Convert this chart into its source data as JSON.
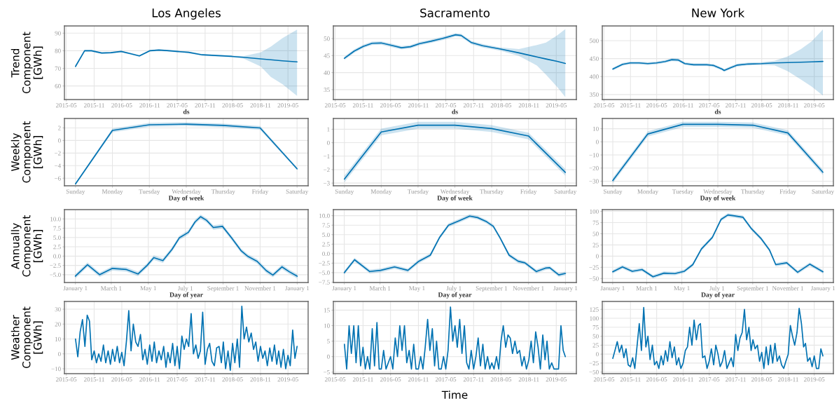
{
  "chart_data": [
    {
      "type": "line",
      "title": "Los Angeles",
      "ylabel": "Trend\nComponent\n[GWh]",
      "xlabel": "ds",
      "grid": true,
      "x": [
        "2015-07-01",
        "2015-08-30",
        "2015-10-14",
        "2015-12-21",
        "2016-02-19",
        "2016-04-27",
        "2016-06-26",
        "2016-08-25",
        "2016-11-01",
        "2016-12-31",
        "2017-02-22",
        "2017-05-01",
        "2017-07-15",
        "2017-10-13",
        "2018-04-27",
        "2018-07-12",
        "2018-11-02",
        "2019-01-08",
        "2019-03-25",
        "2019-06-30"
      ],
      "series": [
        {
          "color": "#0072b2",
          "values": [
            71.1,
            80.0,
            80.0,
            78.7,
            78.9,
            79.6,
            78.4,
            77.1,
            80.0,
            80.4,
            80.1,
            79.6,
            79.1,
            77.7,
            76.8,
            76.3,
            75.4,
            74.9,
            74.3,
            73.7
          ],
          "lower": [
            70.3,
            79.4,
            79.4,
            78.2,
            78.4,
            79.1,
            77.9,
            76.6,
            79.5,
            79.9,
            79.6,
            79.1,
            78.6,
            77.2,
            76.3,
            75.6,
            71.1,
            65.1,
            61.1,
            54.4
          ],
          "upper": [
            71.9,
            80.6,
            80.6,
            79.2,
            79.4,
            80.1,
            78.9,
            77.6,
            80.5,
            80.9,
            80.6,
            80.1,
            79.6,
            78.2,
            77.3,
            77.0,
            79.1,
            82.4,
            87.1,
            92.0
          ]
        }
      ],
      "xlim": [
        "2015-04-19",
        "2019-09-11"
      ],
      "xticks": [
        "2015-05",
        "2015-11",
        "2016-05",
        "2016-11",
        "2017-05",
        "2017-11",
        "2018-05",
        "2018-11",
        "2019-05"
      ],
      "ylim": [
        52.3,
        94.1
      ],
      "yticks": [
        60,
        70,
        80,
        90
      ]
    },
    {
      "type": "line",
      "title": "Sacramento",
      "xlabel": "ds",
      "grid": true,
      "x": [
        "2015-07-01",
        "2015-09-03",
        "2015-11-02",
        "2015-12-31",
        "2016-02-29",
        "2016-04-29",
        "2016-07-12",
        "2016-09-10",
        "2016-11-09",
        "2017-01-22",
        "2017-04-07",
        "2017-07-05",
        "2017-08-11",
        "2017-10-18",
        "2017-12-31",
        "2018-04-29",
        "2018-08-27",
        "2018-12-24",
        "2019-02-22",
        "2019-05-07",
        "2019-06-30"
      ],
      "series": [
        {
          "color": "#0072b2",
          "values": [
            44.2,
            46.3,
            47.7,
            48.6,
            48.7,
            48.1,
            47.3,
            47.6,
            48.5,
            49.2,
            50.0,
            51.1,
            50.9,
            48.8,
            47.9,
            46.9,
            45.8,
            44.6,
            44.0,
            43.3,
            42.7
          ],
          "lower": [
            43.7,
            45.8,
            47.2,
            48.1,
            48.2,
            47.6,
            46.8,
            47.1,
            48.0,
            48.7,
            49.5,
            50.6,
            50.4,
            48.3,
            47.4,
            46.4,
            44.9,
            42.1,
            39.4,
            35.8,
            32.8
          ],
          "upper": [
            44.7,
            46.8,
            48.2,
            49.1,
            49.2,
            48.6,
            47.8,
            48.1,
            49.0,
            49.7,
            50.5,
            51.6,
            51.4,
            49.3,
            48.4,
            47.4,
            46.9,
            48.1,
            48.8,
            50.9,
            52.8
          ]
        }
      ],
      "xlim": [
        "2015-04-19",
        "2019-09-11"
      ],
      "xticks": [
        "2015-05",
        "2015-11",
        "2016-05",
        "2016-11",
        "2017-05",
        "2017-11",
        "2018-05",
        "2018-11",
        "2019-05"
      ],
      "ylim": [
        32.1,
        53.7
      ],
      "yticks": [
        35,
        40,
        45,
        50
      ]
    },
    {
      "type": "line",
      "title": "New York",
      "xlabel": "ds",
      "grid": true,
      "x": [
        "2015-07-01",
        "2015-09-07",
        "2015-10-30",
        "2015-12-30",
        "2016-02-29",
        "2016-04-30",
        "2016-06-29",
        "2016-08-14",
        "2016-09-29",
        "2016-11-13",
        "2017-01-13",
        "2017-04-14",
        "2017-05-30",
        "2017-07-29",
        "2017-08-13",
        "2017-09-28",
        "2017-11-13",
        "2018-01-27",
        "2018-04-29",
        "2018-07-29",
        "2018-10-28",
        "2019-01-27",
        "2019-04-13",
        "2019-06-30"
      ],
      "series": [
        {
          "color": "#0072b2",
          "values": [
            421,
            434,
            438,
            438,
            436,
            438,
            442,
            447,
            446,
            436,
            433,
            433,
            431,
            421,
            417,
            425,
            432,
            435,
            436,
            438,
            439,
            440,
            441,
            442
          ],
          "lower": [
            417,
            430,
            434,
            434,
            432,
            434,
            438,
            443,
            442,
            432,
            429,
            429,
            427,
            417,
            413,
            421,
            428,
            431,
            432,
            431,
            415,
            392,
            372,
            347
          ],
          "upper": [
            425,
            438,
            442,
            442,
            440,
            442,
            446,
            451,
            450,
            440,
            437,
            437,
            435,
            425,
            421,
            429,
            436,
            439,
            440,
            444,
            456,
            476,
            498,
            531
          ]
        }
      ],
      "xlim": [
        "2015-04-19",
        "2019-09-11"
      ],
      "xticks": [
        "2015-05",
        "2015-11",
        "2016-05",
        "2016-11",
        "2017-05",
        "2017-11",
        "2018-05",
        "2018-11",
        "2019-05"
      ],
      "ylim": [
        336,
        541
      ],
      "yticks": [
        350,
        400,
        450,
        500
      ]
    },
    {
      "type": "line",
      "ylabel": "Weekly\nComponent\n[GWh]",
      "xlabel": "Day of week",
      "grid": true,
      "categories": [
        "Sunday",
        "Monday",
        "Tuesday",
        "Wednesday",
        "Thursday",
        "Friday",
        "Saturday"
      ],
      "series": [
        {
          "color": "#0072b2",
          "values": [
            -6.9,
            1.6,
            2.5,
            2.6,
            2.4,
            2.0,
            -4.5
          ],
          "lower": [
            -7.1,
            1.3,
            2.2,
            2.3,
            2.1,
            1.7,
            -4.7
          ],
          "upper": [
            -6.7,
            1.9,
            2.8,
            2.9,
            2.7,
            2.3,
            -4.3
          ]
        }
      ],
      "ylim": [
        -7.2,
        3.5
      ],
      "yticks": [
        -6,
        -4,
        -2,
        0,
        2
      ]
    },
    {
      "type": "line",
      "xlabel": "Day of week",
      "grid": true,
      "categories": [
        "Sunday",
        "Monday",
        "Tuesday",
        "Wednesday",
        "Thursday",
        "Friday",
        "Saturday"
      ],
      "series": [
        {
          "color": "#0072b2",
          "values": [
            -2.7,
            0.8,
            1.3,
            1.3,
            1.05,
            0.5,
            -2.2
          ],
          "lower": [
            -2.95,
            0.55,
            1.05,
            1.05,
            0.8,
            0.25,
            -2.45
          ],
          "upper": [
            -2.45,
            1.05,
            1.55,
            1.55,
            1.3,
            0.75,
            -1.95
          ]
        }
      ],
      "ylim": [
        -3.2,
        1.8
      ],
      "yticks": [
        -3,
        -2,
        -1,
        0,
        1
      ]
    },
    {
      "type": "line",
      "xlabel": "Day of week",
      "grid": true,
      "categories": [
        "Sunday",
        "Monday",
        "Tuesday",
        "Wednesday",
        "Thursday",
        "Friday",
        "Saturday"
      ],
      "series": [
        {
          "color": "#0072b2",
          "values": [
            -29.5,
            6,
            13.3,
            13.3,
            12.7,
            6.8,
            -23.2
          ],
          "lower": [
            -31.5,
            4,
            11.3,
            11.3,
            10.7,
            4.8,
            -25.2
          ],
          "upper": [
            -27.5,
            8,
            15.3,
            15.3,
            14.7,
            8.8,
            -21.2
          ]
        }
      ],
      "ylim": [
        -33.5,
        17.8
      ],
      "yticks": [
        -30,
        -20,
        -10,
        0,
        10
      ]
    },
    {
      "type": "line",
      "ylabel": "Annually\nComponent\n[GWh]",
      "xlabel": "Day of year",
      "grid": true,
      "x": [
        "2017-01-01",
        "2017-01-21",
        "2017-02-10",
        "2017-03-03",
        "2017-03-26",
        "2017-04-14",
        "2017-04-29",
        "2017-05-10",
        "2017-05-25",
        "2017-06-09",
        "2017-06-21",
        "2017-07-06",
        "2017-07-17",
        "2017-07-26",
        "2017-08-05",
        "2017-08-16",
        "2017-08-31",
        "2017-09-15",
        "2017-10-01",
        "2017-10-12",
        "2017-10-27",
        "2017-11-11",
        "2017-11-22",
        "2017-12-07",
        "2017-12-19",
        "2018-01-01"
      ],
      "series": [
        {
          "color": "#0072b2",
          "values": [
            -5.4,
            -2.3,
            -5.0,
            -3.3,
            -3.6,
            -4.8,
            -2.5,
            -0.4,
            -1.2,
            1.8,
            4.9,
            6.4,
            9.2,
            10.6,
            9.6,
            7.7,
            8.0,
            4.9,
            1.4,
            -0.1,
            -1.4,
            -3.9,
            -5.1,
            -2.9,
            -4.2,
            -5.4
          ],
          "lower": [
            -6.0,
            -2.9,
            -5.6,
            -3.9,
            -4.2,
            -5.4,
            -3.1,
            -1.0,
            -1.8,
            1.2,
            4.3,
            5.8,
            8.6,
            10.0,
            9.0,
            7.1,
            7.4,
            4.3,
            0.8,
            -0.7,
            -2.0,
            -4.5,
            -5.7,
            -3.5,
            -4.8,
            -6.0
          ],
          "upper": [
            -4.8,
            -1.7,
            -4.4,
            -2.7,
            -3.0,
            -4.2,
            -1.9,
            0.2,
            -0.6,
            2.4,
            5.5,
            7.0,
            9.8,
            11.2,
            10.2,
            8.3,
            8.6,
            5.5,
            2.0,
            0.5,
            -0.8,
            -3.3,
            -4.5,
            -2.3,
            -3.6,
            -4.8
          ]
        }
      ],
      "xlim": [
        "2016-12-14",
        "2018-01-19"
      ],
      "xticks": [
        {
          "value": "2017-01-01",
          "label": "January 1"
        },
        {
          "value": "2017-03-01",
          "label": "March 1"
        },
        {
          "value": "2017-05-01",
          "label": "May 1"
        },
        {
          "value": "2017-07-01",
          "label": "July 1"
        },
        {
          "value": "2017-09-01",
          "label": "September 1"
        },
        {
          "value": "2017-11-01",
          "label": "November 1"
        },
        {
          "value": "2018-01-01",
          "label": "January 1"
        }
      ],
      "ylim": [
        -7.1,
        12.5
      ],
      "yticks": [
        {
          "value": 10,
          "label": "10.0"
        },
        {
          "value": 7.5,
          "label": "7.5"
        },
        {
          "value": 5,
          "label": "5.0"
        },
        {
          "value": 2.5,
          "label": "2.5"
        },
        {
          "value": 0,
          "label": "0.0"
        },
        {
          "value": -2.5,
          "label": "−2.5"
        },
        {
          "value": -5,
          "label": "−5.0"
        }
      ]
    },
    {
      "type": "line",
      "xlabel": "Day of year",
      "grid": true,
      "x": [
        "2017-01-01",
        "2017-01-18",
        "2017-02-12",
        "2017-03-02",
        "2017-03-25",
        "2017-04-16",
        "2017-05-04",
        "2017-05-23",
        "2017-06-07",
        "2017-06-22",
        "2017-07-10",
        "2017-07-27",
        "2017-08-09",
        "2017-08-24",
        "2017-09-04",
        "2017-09-15",
        "2017-09-30",
        "2017-10-15",
        "2017-10-26",
        "2017-11-14",
        "2017-11-29",
        "2017-12-06",
        "2017-12-21",
        "2018-01-01"
      ],
      "series": [
        {
          "color": "#0072b2",
          "values": [
            -5.0,
            -1.6,
            -4.7,
            -4.4,
            -3.5,
            -4.4,
            -2.0,
            -0.4,
            4.2,
            7.5,
            8.7,
            9.9,
            9.5,
            8.4,
            7.2,
            4.2,
            -0.4,
            -2.0,
            -2.4,
            -4.7,
            -3.8,
            -3.7,
            -5.6,
            -5.2
          ],
          "lower": [
            -5.5,
            -2.1,
            -5.2,
            -4.9,
            -4.0,
            -4.9,
            -2.5,
            -0.9,
            3.7,
            7.0,
            8.2,
            9.4,
            9.0,
            7.9,
            6.7,
            3.7,
            -0.9,
            -2.5,
            -2.9,
            -5.2,
            -4.3,
            -4.2,
            -6.1,
            -5.7
          ],
          "upper": [
            -4.5,
            -1.1,
            -4.2,
            -3.9,
            -3.0,
            -3.9,
            -1.5,
            0.1,
            4.7,
            8.0,
            9.2,
            10.4,
            10.0,
            8.9,
            7.7,
            4.7,
            0.1,
            -1.5,
            -1.9,
            -4.2,
            -3.3,
            -3.2,
            -5.1,
            -4.7
          ]
        }
      ],
      "xlim": [
        "2016-12-14",
        "2018-01-19"
      ],
      "xticks": [
        {
          "value": "2017-01-01",
          "label": "January 1"
        },
        {
          "value": "2017-03-01",
          "label": "March 1"
        },
        {
          "value": "2017-05-01",
          "label": "May 1"
        },
        {
          "value": "2017-07-01",
          "label": "July 1"
        },
        {
          "value": "2017-09-01",
          "label": "September 1"
        },
        {
          "value": "2017-11-01",
          "label": "November 1"
        },
        {
          "value": "2018-01-01",
          "label": "January 1"
        }
      ],
      "ylim": [
        -7.6,
        11.6
      ],
      "yticks": [
        {
          "value": 10,
          "label": "10.0"
        },
        {
          "value": 7.5,
          "label": "7.5"
        },
        {
          "value": 5,
          "label": "5.0"
        },
        {
          "value": 2.5,
          "label": "2.5"
        },
        {
          "value": 0,
          "label": "0.0"
        },
        {
          "value": -2.5,
          "label": "−2.5"
        },
        {
          "value": -5,
          "label": "−5.0"
        },
        {
          "value": -7.5,
          "label": "−7.5"
        }
      ]
    },
    {
      "type": "line",
      "xlabel": "Day of year",
      "grid": true,
      "x": [
        "2017-01-01",
        "2017-01-18",
        "2017-02-04",
        "2017-02-21",
        "2017-03-12",
        "2017-03-31",
        "2017-04-19",
        "2017-05-05",
        "2017-05-20",
        "2017-06-04",
        "2017-06-23",
        "2017-07-08",
        "2017-07-20",
        "2017-07-31",
        "2017-08-15",
        "2017-08-30",
        "2017-09-15",
        "2017-09-30",
        "2017-10-11",
        "2017-10-30",
        "2017-11-18",
        "2017-12-09",
        "2018-01-01"
      ],
      "series": [
        {
          "color": "#0072b2",
          "values": [
            -35,
            -24,
            -34,
            -30,
            -46,
            -38,
            -39,
            -34,
            -19,
            16,
            42,
            82,
            92,
            90,
            87,
            61,
            40,
            14,
            -19,
            -15,
            -36,
            -18,
            -35
          ],
          "lower": [
            -39,
            -28,
            -38,
            -34,
            -50,
            -42,
            -43,
            -38,
            -23,
            12,
            38,
            78,
            88,
            86,
            83,
            57,
            36,
            10,
            -23,
            -19,
            -40,
            -22,
            -39
          ],
          "upper": [
            -31,
            -20,
            -30,
            -26,
            -42,
            -34,
            -35,
            -30,
            -15,
            20,
            46,
            86,
            96,
            94,
            91,
            65,
            44,
            18,
            -15,
            -11,
            -32,
            -14,
            -31
          ]
        }
      ],
      "xlim": [
        "2016-12-14",
        "2018-01-19"
      ],
      "xticks": [
        {
          "value": "2017-01-01",
          "label": "January 1"
        },
        {
          "value": "2017-03-01",
          "label": "March 1"
        },
        {
          "value": "2017-05-01",
          "label": "May 1"
        },
        {
          "value": "2017-07-01",
          "label": "July 1"
        },
        {
          "value": "2017-09-01",
          "label": "September 1"
        },
        {
          "value": "2017-11-01",
          "label": "November 1"
        },
        {
          "value": "2018-01-01",
          "label": "January 1"
        }
      ],
      "ylim": [
        -59,
        104
      ],
      "yticks": [
        -50,
        -25,
        0,
        25,
        50,
        75,
        100
      ]
    },
    {
      "type": "line",
      "ylabel": "Weather\nComponent\n[GWh]",
      "grid": true,
      "x": [
        "2015-07-01",
        "2015-07-16",
        "2015-08-01",
        "2015-08-16",
        "2015-09-01",
        "2015-09-16",
        "2015-10-01",
        "2015-10-16",
        "2015-11-01",
        "2015-11-16",
        "2015-12-01",
        "2015-12-16",
        "2016-01-01",
        "2016-01-16",
        "2016-02-01",
        "2016-02-16",
        "2016-03-01",
        "2016-03-16",
        "2016-04-01",
        "2016-04-16",
        "2016-05-01",
        "2016-05-16",
        "2016-06-01",
        "2016-06-16",
        "2016-07-01",
        "2016-07-16",
        "2016-08-01",
        "2016-08-16",
        "2016-09-01",
        "2016-09-16",
        "2016-10-01",
        "2016-10-16",
        "2016-11-01",
        "2016-11-16",
        "2016-12-01",
        "2016-12-16",
        "2017-01-01",
        "2017-01-16",
        "2017-02-01",
        "2017-02-16",
        "2017-03-01",
        "2017-03-16",
        "2017-04-01",
        "2017-04-16",
        "2017-05-01",
        "2017-05-16",
        "2017-06-01",
        "2017-06-16",
        "2017-07-01",
        "2017-07-16",
        "2017-08-01",
        "2017-08-16",
        "2017-09-01",
        "2017-09-16",
        "2017-10-01",
        "2017-10-16",
        "2017-11-01",
        "2017-11-16",
        "2017-12-01",
        "2017-12-16",
        "2018-01-01",
        "2018-01-16",
        "2018-02-01",
        "2018-02-16",
        "2018-03-01",
        "2018-03-16",
        "2018-04-01",
        "2018-04-16",
        "2018-05-01",
        "2018-05-16",
        "2018-06-01",
        "2018-06-16",
        "2018-07-01",
        "2018-07-16",
        "2018-08-01",
        "2018-08-16",
        "2018-09-01",
        "2018-09-16",
        "2018-10-01",
        "2018-10-16",
        "2018-11-01",
        "2018-11-16",
        "2018-12-01",
        "2018-12-16",
        "2019-01-01",
        "2019-01-16",
        "2019-02-01",
        "2019-02-16",
        "2019-03-01",
        "2019-03-16",
        "2019-04-01",
        "2019-04-16",
        "2019-05-01",
        "2019-05-16",
        "2019-06-01",
        "2019-06-16",
        "2019-06-30"
      ],
      "series": [
        {
          "color": "#0072b2",
          "values": [
            10,
            -2,
            15,
            23,
            5,
            26,
            22,
            -4,
            2,
            -6,
            0,
            -5,
            6,
            -6,
            2,
            -7,
            3,
            -5,
            5,
            -6,
            1,
            -8,
            9,
            29,
            2,
            20,
            8,
            5,
            13,
            -4,
            3,
            -7,
            6,
            -5,
            8,
            -6,
            2,
            -4,
            5,
            -9,
            1,
            -6,
            7,
            -8,
            5,
            -10,
            12,
            3,
            10,
            5,
            27,
            0,
            6,
            -3,
            2,
            28,
            -7,
            3,
            7,
            -5,
            -8,
            4,
            5,
            -6,
            8,
            -10,
            2,
            -11,
            7,
            -6,
            10,
            -9,
            32,
            10,
            18,
            8,
            14,
            3,
            8,
            -5,
            5,
            -3,
            2,
            -8,
            4,
            -5,
            6,
            -7,
            2,
            -9,
            3,
            -10,
            -1,
            -8,
            16,
            -3,
            5
          ]
        }
      ],
      "xlim": [
        "2015-04-19",
        "2019-09-11"
      ],
      "xticks": [
        "2015-05",
        "2015-11",
        "2016-05",
        "2016-11",
        "2017-05",
        "2017-11",
        "2018-05",
        "2018-11",
        "2019-05"
      ],
      "ylim": [
        -13.3,
        35.2
      ],
      "yticks": [
        -10,
        0,
        10,
        20,
        30
      ]
    },
    {
      "type": "line",
      "xlabel": "Time",
      "grid": true,
      "x": [
        "2015-07-01",
        "2015-07-16",
        "2015-08-01",
        "2015-08-16",
        "2015-09-01",
        "2015-09-16",
        "2015-10-01",
        "2015-10-16",
        "2015-11-01",
        "2015-11-16",
        "2015-12-01",
        "2015-12-16",
        "2016-01-01",
        "2016-01-16",
        "2016-02-01",
        "2016-02-16",
        "2016-03-01",
        "2016-03-16",
        "2016-04-01",
        "2016-04-16",
        "2016-05-01",
        "2016-05-16",
        "2016-06-01",
        "2016-06-16",
        "2016-07-01",
        "2016-07-16",
        "2016-08-01",
        "2016-08-16",
        "2016-09-01",
        "2016-09-16",
        "2016-10-01",
        "2016-10-16",
        "2016-11-01",
        "2016-11-16",
        "2016-12-01",
        "2016-12-16",
        "2017-01-01",
        "2017-01-16",
        "2017-02-01",
        "2017-02-16",
        "2017-03-01",
        "2017-03-16",
        "2017-04-01",
        "2017-04-16",
        "2017-05-01",
        "2017-05-16",
        "2017-06-01",
        "2017-06-16",
        "2017-07-01",
        "2017-07-16",
        "2017-08-01",
        "2017-08-16",
        "2017-09-01",
        "2017-09-16",
        "2017-10-01",
        "2017-10-16",
        "2017-11-01",
        "2017-11-16",
        "2017-12-01",
        "2017-12-16",
        "2018-01-01",
        "2018-01-16",
        "2018-02-01",
        "2018-02-16",
        "2018-03-01",
        "2018-03-16",
        "2018-04-01",
        "2018-04-16",
        "2018-05-01",
        "2018-05-16",
        "2018-06-01",
        "2018-06-16",
        "2018-07-01",
        "2018-07-16",
        "2018-08-01",
        "2018-08-16",
        "2018-09-01",
        "2018-09-16",
        "2018-10-01",
        "2018-10-16",
        "2018-11-01",
        "2018-11-16",
        "2018-12-01",
        "2018-12-16",
        "2019-01-01",
        "2019-01-16",
        "2019-02-01",
        "2019-02-16",
        "2019-03-01",
        "2019-03-16",
        "2019-04-01",
        "2019-04-16",
        "2019-05-01",
        "2019-05-16",
        "2019-06-01",
        "2019-06-16",
        "2019-06-30"
      ],
      "series": [
        {
          "color": "#0072b2",
          "values": [
            4,
            -4,
            10,
            1,
            10,
            -2,
            10,
            -3,
            3,
            -4,
            0,
            -4,
            9,
            -3,
            11,
            -4,
            -4,
            2,
            -4,
            -2,
            0,
            -4,
            6,
            0,
            10,
            2,
            10,
            -2,
            2,
            -4,
            4,
            -4,
            -4,
            0,
            -4,
            3,
            12,
            2,
            9,
            -3,
            5,
            -4,
            -4,
            0,
            -4,
            2,
            16,
            5,
            10,
            3,
            12,
            1,
            10,
            -2,
            -4,
            2,
            -4,
            0,
            6,
            -3,
            4,
            -4,
            0,
            -4,
            -2,
            -4,
            0,
            -4,
            5,
            10,
            3,
            7,
            6,
            1,
            5,
            1,
            2,
            -3,
            0,
            -4,
            -1,
            5,
            -2,
            8,
            3,
            -4,
            7,
            -1,
            5,
            -4,
            -2,
            -4,
            -4,
            -4,
            10,
            2,
            0
          ]
        }
      ],
      "xlim": [
        "2015-04-19",
        "2019-09-11"
      ],
      "xticks": [
        "2015-05",
        "2015-11",
        "2016-05",
        "2016-11",
        "2017-05",
        "2017-11",
        "2018-05",
        "2018-11",
        "2019-05"
      ],
      "ylim": [
        -5.5,
        17.8
      ],
      "yticks": [
        -5,
        0,
        5,
        10,
        15
      ]
    },
    {
      "type": "line",
      "grid": true,
      "x": [
        "2015-07-01",
        "2015-07-16",
        "2015-08-01",
        "2015-08-16",
        "2015-09-01",
        "2015-09-16",
        "2015-10-01",
        "2015-10-16",
        "2015-11-01",
        "2015-11-16",
        "2015-12-01",
        "2015-12-16",
        "2016-01-01",
        "2016-01-16",
        "2016-02-01",
        "2016-02-16",
        "2016-03-01",
        "2016-03-16",
        "2016-04-01",
        "2016-04-16",
        "2016-05-01",
        "2016-05-16",
        "2016-06-01",
        "2016-06-16",
        "2016-07-01",
        "2016-07-16",
        "2016-08-01",
        "2016-08-16",
        "2016-09-01",
        "2016-09-16",
        "2016-10-01",
        "2016-10-16",
        "2016-11-01",
        "2016-11-16",
        "2016-12-01",
        "2016-12-16",
        "2017-01-01",
        "2017-01-16",
        "2017-02-01",
        "2017-02-16",
        "2017-03-01",
        "2017-03-16",
        "2017-04-01",
        "2017-04-16",
        "2017-05-01",
        "2017-05-16",
        "2017-06-01",
        "2017-06-16",
        "2017-07-01",
        "2017-07-16",
        "2017-08-01",
        "2017-08-16",
        "2017-09-01",
        "2017-09-16",
        "2017-10-01",
        "2017-10-16",
        "2017-11-01",
        "2017-11-16",
        "2017-12-01",
        "2017-12-16",
        "2018-01-01",
        "2018-01-16",
        "2018-02-01",
        "2018-02-16",
        "2018-03-01",
        "2018-03-16",
        "2018-04-01",
        "2018-04-16",
        "2018-05-01",
        "2018-05-16",
        "2018-06-01",
        "2018-06-16",
        "2018-07-01",
        "2018-07-16",
        "2018-08-01",
        "2018-08-16",
        "2018-09-01",
        "2018-09-16",
        "2018-10-01",
        "2018-10-16",
        "2018-11-01",
        "2018-11-16",
        "2018-12-01",
        "2018-12-16",
        "2019-01-01",
        "2019-01-16",
        "2019-02-01",
        "2019-02-16",
        "2019-03-01",
        "2019-03-16",
        "2019-04-01",
        "2019-04-16",
        "2019-05-01",
        "2019-05-16",
        "2019-06-01",
        "2019-06-16",
        "2019-06-30"
      ],
      "series": [
        {
          "color": "#0072b2",
          "values": [
            -12,
            10,
            35,
            5,
            25,
            -10,
            15,
            -30,
            -35,
            -10,
            -40,
            20,
            85,
            10,
            130,
            20,
            50,
            -15,
            25,
            -30,
            -20,
            -40,
            -5,
            -30,
            10,
            -20,
            35,
            -10,
            20,
            -30,
            -10,
            -40,
            -25,
            10,
            20,
            75,
            25,
            95,
            40,
            80,
            85,
            -10,
            -5,
            -40,
            -20,
            15,
            -30,
            25,
            0,
            -35,
            -20,
            10,
            -40,
            -25,
            -10,
            -35,
            55,
            10,
            45,
            60,
            125,
            40,
            75,
            10,
            40,
            15,
            25,
            -20,
            5,
            -40,
            20,
            -30,
            25,
            -25,
            30,
            -20,
            -5,
            -30,
            -40,
            -20,
            0,
            80,
            50,
            25,
            60,
            128,
            85,
            20,
            30,
            -20,
            -10,
            -35,
            -5,
            -40,
            -40,
            15,
            -5
          ]
        }
      ],
      "xlim": [
        "2015-04-19",
        "2019-09-11"
      ],
      "xticks": [
        "2015-05",
        "2015-11",
        "2016-05",
        "2016-11",
        "2017-05",
        "2017-11",
        "2018-05",
        "2018-11",
        "2019-05"
      ],
      "ylim": [
        -54.5,
        147
      ],
      "yticks": [
        -50,
        -25,
        0,
        25,
        50,
        75,
        100,
        125
      ]
    }
  ]
}
